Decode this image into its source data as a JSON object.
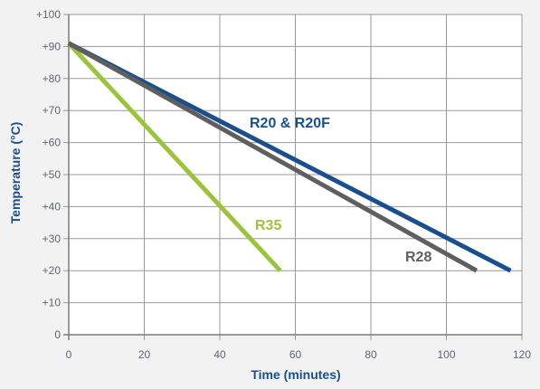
{
  "chart_data": {
    "type": "line",
    "title": "",
    "xlabel": "Time (minutes)",
    "ylabel": "Temperature (°C)",
    "xlim": [
      0,
      120
    ],
    "ylim": [
      0,
      100
    ],
    "x_ticks": [
      0,
      20,
      40,
      60,
      80,
      100,
      120
    ],
    "x_tick_labels": [
      "0",
      "20",
      "40",
      "60",
      "80",
      "100",
      "120"
    ],
    "y_ticks": [
      0,
      10,
      20,
      30,
      40,
      50,
      60,
      70,
      80,
      90,
      100
    ],
    "y_tick_labels": [
      "0",
      "+10",
      "+20",
      "+30",
      "+40",
      "+50",
      "+60",
      "+70",
      "+80",
      "+90",
      "+100"
    ],
    "grid": true,
    "series": [
      {
        "name": "R20 & R20F",
        "color": "#1a4f8f",
        "x": [
          0,
          117
        ],
        "y": [
          91,
          20
        ]
      },
      {
        "name": "R28",
        "color": "#5f5f5f",
        "x": [
          0,
          108
        ],
        "y": [
          91,
          20
        ]
      },
      {
        "name": "R35",
        "color": "#9bc33c",
        "x": [
          0,
          56
        ],
        "y": [
          91,
          20
        ]
      }
    ]
  },
  "colors": {
    "background": "#f2f2f2",
    "plot_bg": "#ffffff",
    "grid": "#9a9a9a",
    "axis_title": "#1a4f8f",
    "tick": "#5f6670"
  }
}
